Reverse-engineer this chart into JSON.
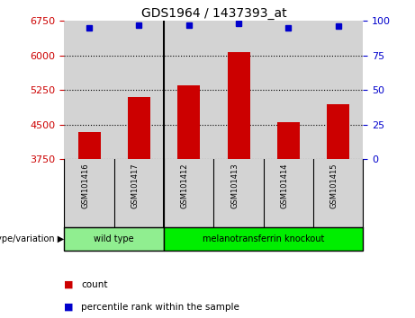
{
  "title": "GDS1964 / 1437393_at",
  "samples": [
    "GSM101416",
    "GSM101417",
    "GSM101412",
    "GSM101413",
    "GSM101414",
    "GSM101415"
  ],
  "bar_values": [
    4350,
    5100,
    5350,
    6080,
    4560,
    4950
  ],
  "percentile_values": [
    95,
    97,
    97,
    98,
    95,
    96
  ],
  "bar_color": "#cc0000",
  "dot_color": "#0000cc",
  "ylim_left": [
    3750,
    6750
  ],
  "yticks_left": [
    3750,
    4500,
    5250,
    6000,
    6750
  ],
  "ylim_right": [
    0,
    100
  ],
  "yticks_right": [
    0,
    25,
    50,
    75,
    100
  ],
  "groups": [
    {
      "label": "wild type",
      "indices": [
        0,
        1
      ],
      "color": "#90ee90"
    },
    {
      "label": "melanotransferrin knockout",
      "indices": [
        2,
        3,
        4,
        5
      ],
      "color": "#00ee00"
    }
  ],
  "genotype_label": "genotype/variation",
  "legend_count": "count",
  "legend_percentile": "percentile rank within the sample",
  "bar_width": 0.45,
  "background_color": "#ffffff",
  "plot_bg_color": "#d3d3d3",
  "grid_color": "#000000",
  "tick_color_left": "#cc0000",
  "tick_color_right": "#0000cc"
}
